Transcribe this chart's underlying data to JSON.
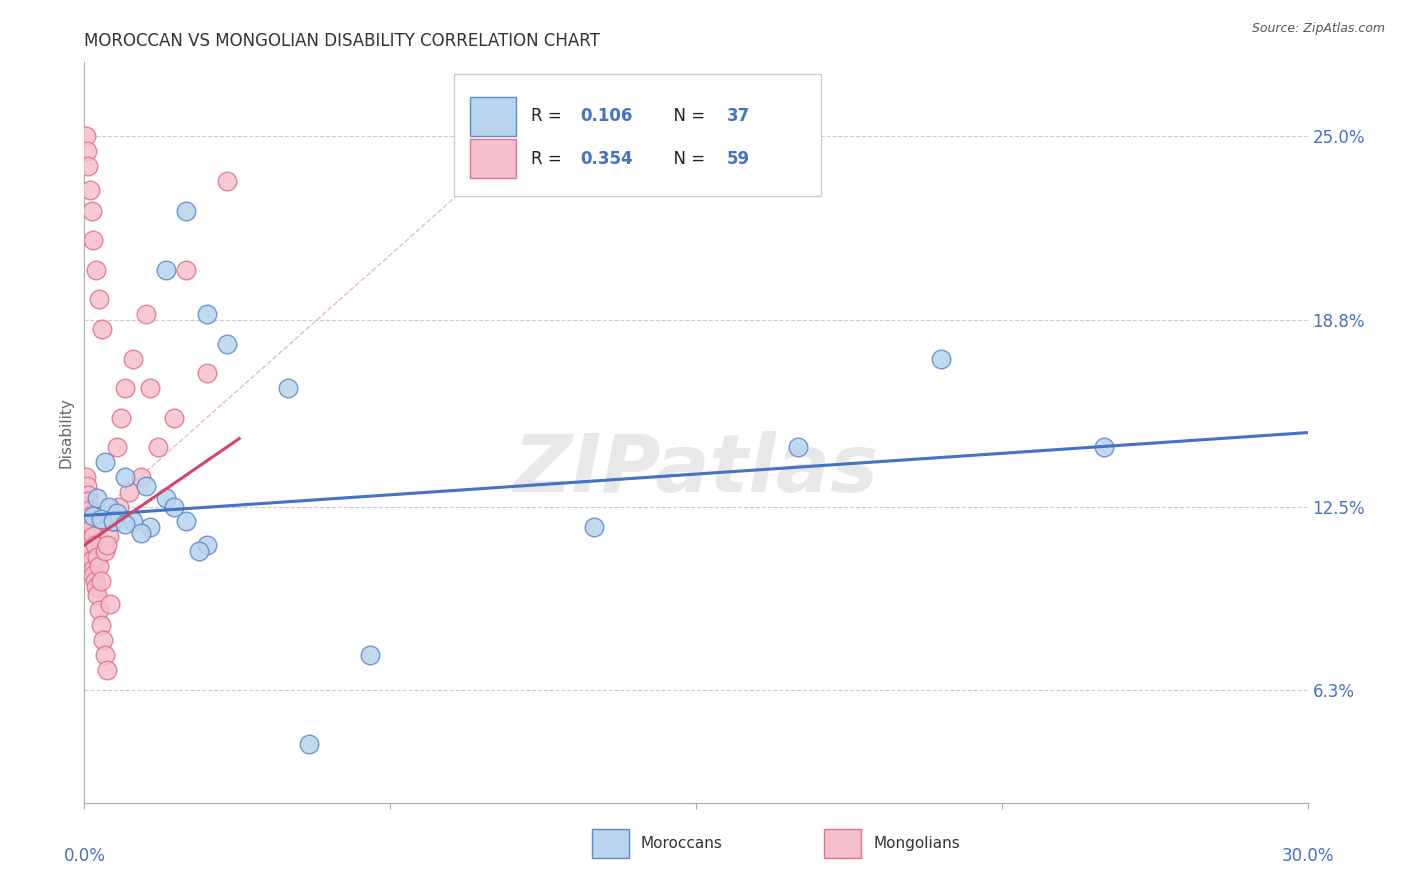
{
  "title": "MOROCCAN VS MONGOLIAN DISABILITY CORRELATION CHART",
  "source": "Source: ZipAtlas.com",
  "ylabel": "Disability",
  "xlim": [
    0.0,
    30.0
  ],
  "ylim": [
    2.5,
    27.5
  ],
  "yticks": [
    6.3,
    12.5,
    18.8,
    25.0
  ],
  "ytick_labels": [
    "6.3%",
    "12.5%",
    "18.8%",
    "25.0%"
  ],
  "watermark": "ZIPatlas",
  "blue_face": "#B8D4EE",
  "blue_edge": "#5B8AC7",
  "pink_face": "#F5C0CC",
  "pink_edge": "#E07090",
  "blue_line_color": "#4472C4",
  "pink_line_color": "#D44468",
  "dash_line_color": "#E0B0C0",
  "grid_color": "#CCCCCC",
  "title_color": "#333333",
  "axis_blue": "#4472C4",
  "legend_R_color": "#222222",
  "legend_N_color": "#4472C4",
  "blue_x": [
    2.5,
    2.0,
    3.0,
    3.5,
    5.0,
    7.0,
    12.5,
    17.5,
    21.0,
    0.5,
    1.0,
    1.5,
    2.0,
    2.5,
    3.0,
    0.3,
    0.6,
    0.8,
    1.2,
    1.6,
    2.2,
    2.8,
    0.2,
    0.4,
    0.7,
    1.0,
    1.4,
    25.0,
    5.5
  ],
  "blue_y": [
    22.5,
    20.5,
    19.0,
    18.0,
    16.5,
    7.5,
    11.8,
    14.5,
    17.5,
    14.0,
    13.5,
    13.2,
    12.8,
    12.0,
    11.2,
    12.8,
    12.5,
    12.3,
    12.0,
    11.8,
    12.5,
    11.0,
    12.2,
    12.1,
    12.0,
    11.9,
    11.6,
    14.5,
    4.5
  ],
  "pink_x": [
    0.04,
    0.06,
    0.08,
    0.1,
    0.12,
    0.14,
    0.16,
    0.18,
    0.2,
    0.22,
    0.25,
    0.28,
    0.32,
    0.36,
    0.4,
    0.45,
    0.5,
    0.55,
    0.62,
    0.7,
    0.8,
    0.9,
    1.0,
    1.2,
    1.5,
    0.04,
    0.06,
    0.08,
    0.1,
    0.12,
    0.14,
    0.16,
    0.18,
    0.22,
    0.26,
    0.3,
    0.35,
    0.42,
    0.5,
    0.6,
    0.7,
    0.85,
    1.1,
    1.4,
    1.8,
    2.2,
    3.0,
    0.04,
    0.07,
    0.1,
    0.14,
    0.18,
    0.22,
    0.28,
    0.35,
    0.44,
    0.55,
    2.5,
    3.5,
    1.6
  ],
  "pink_y": [
    12.5,
    12.3,
    12.0,
    11.8,
    11.5,
    11.2,
    11.0,
    10.7,
    10.4,
    10.2,
    10.0,
    9.8,
    9.5,
    9.0,
    8.5,
    8.0,
    7.5,
    7.0,
    9.2,
    12.0,
    14.5,
    15.5,
    16.5,
    17.5,
    19.0,
    13.5,
    13.2,
    12.9,
    12.7,
    12.4,
    12.2,
    12.0,
    11.8,
    11.5,
    11.2,
    10.8,
    10.5,
    10.0,
    11.0,
    11.5,
    12.0,
    12.5,
    13.0,
    13.5,
    14.5,
    15.5,
    17.0,
    25.0,
    24.5,
    24.0,
    23.2,
    22.5,
    21.5,
    20.5,
    19.5,
    18.5,
    11.2,
    20.5,
    23.5,
    16.5
  ]
}
